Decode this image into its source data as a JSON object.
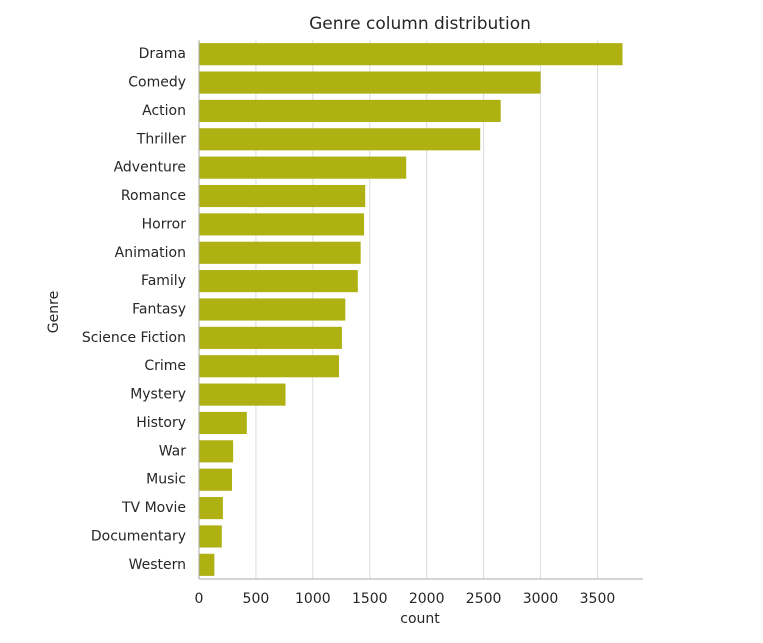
{
  "chart_data": {
    "type": "bar",
    "orientation": "horizontal",
    "title": "Genre column distribution",
    "xlabel": "count",
    "ylabel": "Genre",
    "xlim": [
      0,
      3900
    ],
    "xticks": [
      0,
      500,
      1000,
      1500,
      2000,
      2500,
      3000,
      3500
    ],
    "xtick_labels": [
      "0",
      "500",
      "1000",
      "1500",
      "2000",
      "2500",
      "3000",
      "3500"
    ],
    "grid": true,
    "bar_color": "#aeb111",
    "grid_color": "#dcdcdc",
    "axis_color": "#a9a9a9",
    "categories": [
      "Drama",
      "Comedy",
      "Action",
      "Thriller",
      "Adventure",
      "Romance",
      "Horror",
      "Animation",
      "Family",
      "Fantasy",
      "Science Fiction",
      "Crime",
      "Mystery",
      "History",
      "War",
      "Music",
      "TV Movie",
      "Documentary",
      "Western"
    ],
    "values": [
      3720,
      3000,
      2650,
      2470,
      1820,
      1460,
      1450,
      1420,
      1395,
      1285,
      1255,
      1230,
      760,
      420,
      300,
      290,
      210,
      200,
      135
    ]
  }
}
